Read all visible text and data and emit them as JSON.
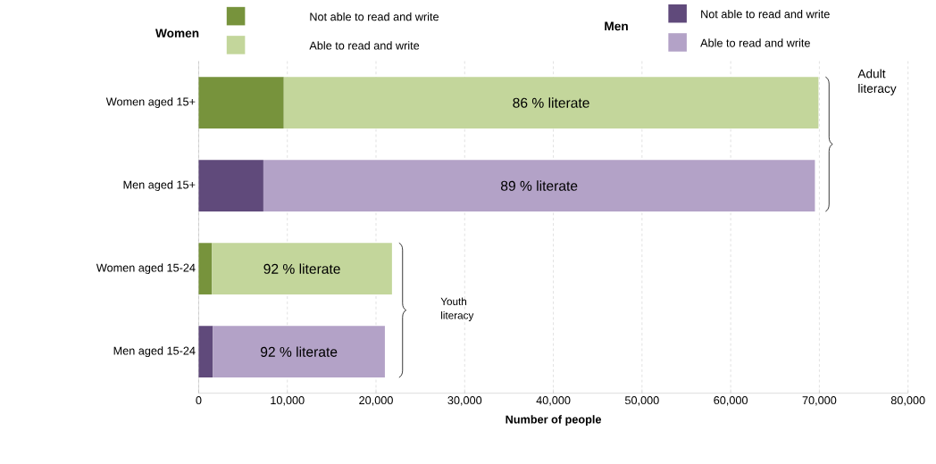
{
  "chart_data": {
    "type": "bar",
    "orientation": "horizontal",
    "stacked": true,
    "categories": [
      "Women aged 15+",
      "Men aged 15+",
      "Women aged 15-24",
      "Men aged 15-24"
    ],
    "series": [
      {
        "name": "Not able to read and write",
        "colors": [
          "#77933c",
          "#604a7b",
          "#77933c",
          "#604a7b"
        ],
        "values": [
          9600,
          7300,
          1500,
          1600
        ]
      },
      {
        "name": "Able to read and write",
        "colors": [
          "#c3d69b",
          "#b3a2c7",
          "#c3d69b",
          "#b3a2c7"
        ],
        "values": [
          60300,
          62200,
          20300,
          19400
        ]
      }
    ],
    "xlabel": "Number of people",
    "xlim": [
      0,
      80000
    ],
    "xticks": [
      0,
      {
        "value": 10000,
        "label": "10,000"
      },
      {
        "value": 20000,
        "label": "20,000"
      },
      {
        "value": 30000,
        "label": "30,000"
      },
      {
        "value": 40000,
        "label": "40,000"
      },
      {
        "value": 50000,
        "label": "50,000"
      },
      {
        "value": 60000,
        "label": "60,000"
      },
      {
        "value": 70000,
        "label": "70,000"
      },
      {
        "value": 80000,
        "label": "80,000"
      }
    ],
    "grid": "x",
    "legend": "top",
    "annotations": [
      "Women",
      "Men",
      "Adult literacy",
      "Youth literacy",
      "86 % literate",
      "89 % literate",
      "92 % literate",
      "92 % literate"
    ]
  }
}
